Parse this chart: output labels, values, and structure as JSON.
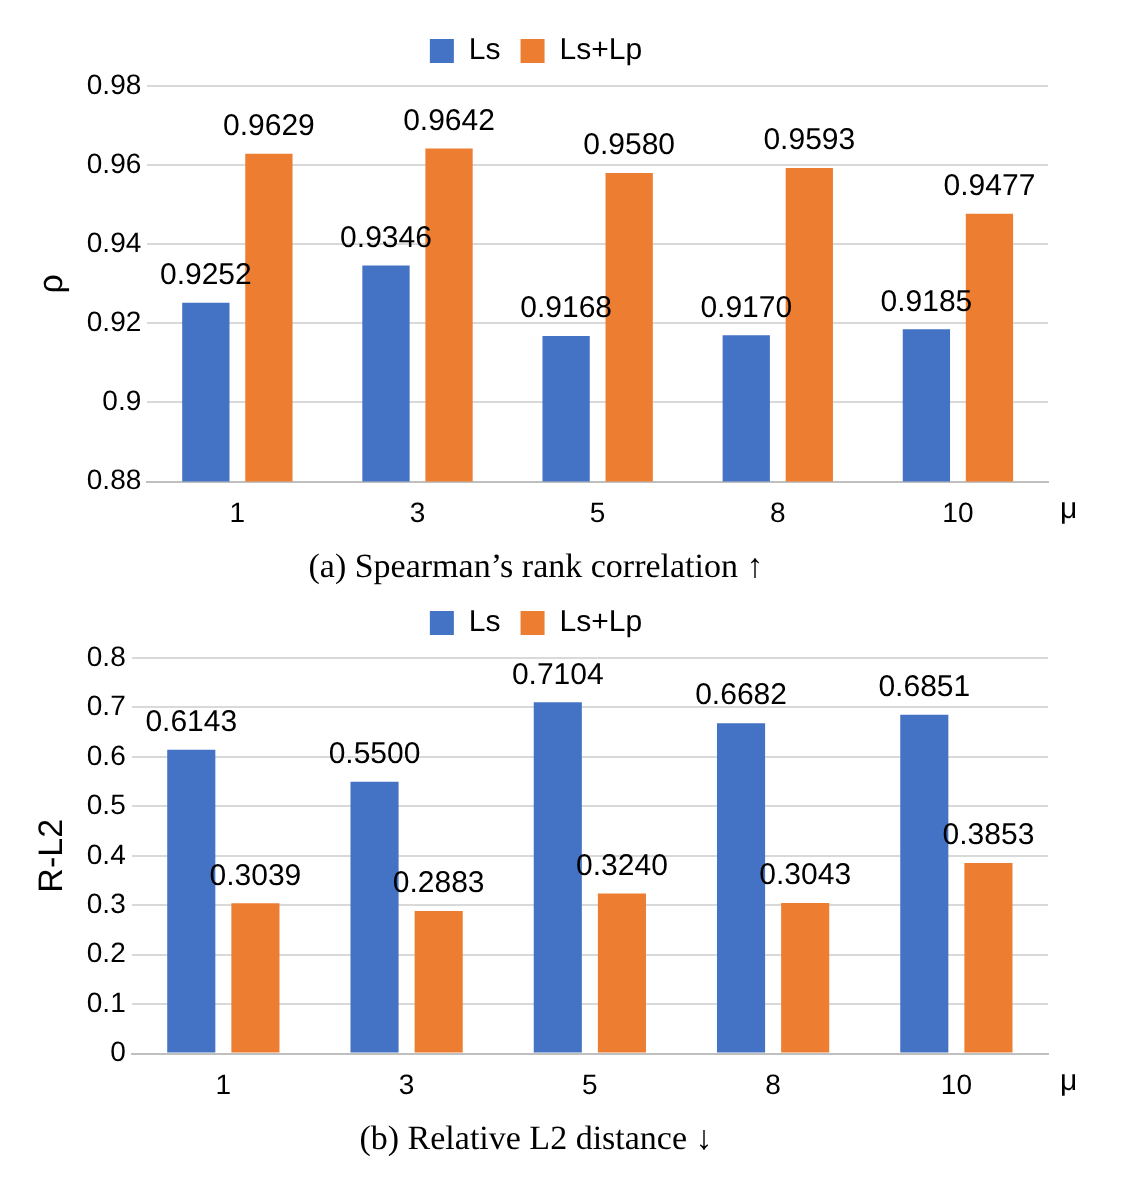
{
  "chart_data": [
    {
      "type": "bar",
      "title": "(a) Spearman’s rank correlation ↑",
      "xlabel": "μ",
      "ylabel": "ρ",
      "categories": [
        "1",
        "3",
        "5",
        "8",
        "10"
      ],
      "series": [
        {
          "name": "Ls",
          "color": "#4472c4",
          "values": [
            0.9252,
            0.9346,
            0.9168,
            0.917,
            0.9185
          ],
          "value_labels": [
            "0.9252",
            "0.9346",
            "0.9168",
            "0.9170",
            "0.9185"
          ]
        },
        {
          "name": "Ls+Lp",
          "color": "#ed7d31",
          "values": [
            0.9629,
            0.9642,
            0.958,
            0.9593,
            0.9477
          ],
          "value_labels": [
            "0.9629",
            "0.9642",
            "0.9580",
            "0.9593",
            "0.9477"
          ]
        }
      ],
      "ylim": [
        0.88,
        0.98
      ],
      "yticks": [
        0.88,
        0.9,
        0.92,
        0.94,
        0.96,
        0.98
      ],
      "grid": "y",
      "legend": "top"
    },
    {
      "type": "bar",
      "title": "(b) Relative L2 distance ↓",
      "xlabel": "μ",
      "ylabel": "R-L2",
      "categories": [
        "1",
        "3",
        "5",
        "8",
        "10"
      ],
      "series": [
        {
          "name": "Ls",
          "color": "#4472c4",
          "values": [
            0.6143,
            0.55,
            0.7104,
            0.6682,
            0.6851
          ],
          "value_labels": [
            "0.6143",
            "0.5500",
            "0.7104",
            "0.6682",
            "0.6851"
          ]
        },
        {
          "name": "Ls+Lp",
          "color": "#ed7d31",
          "values": [
            0.3039,
            0.2883,
            0.324,
            0.3043,
            0.3853
          ],
          "value_labels": [
            "0.3039",
            "0.2883",
            "0.3240",
            "0.3043",
            "0.3853"
          ]
        }
      ],
      "ylim": [
        0,
        0.8
      ],
      "yticks": [
        0,
        0.1,
        0.2,
        0.3,
        0.4,
        0.5,
        0.6,
        0.7,
        0.8
      ],
      "grid": "y",
      "legend": "top"
    }
  ]
}
